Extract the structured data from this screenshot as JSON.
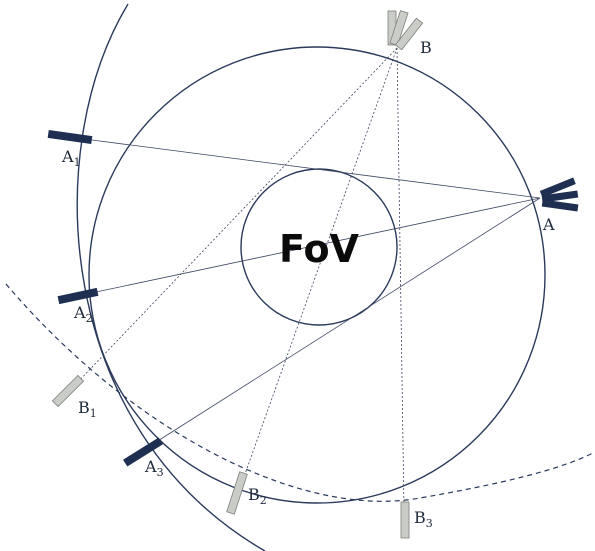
{
  "diagram": {
    "fov_label": "FoV",
    "labels": {
      "A": {
        "main": "A",
        "sub": ""
      },
      "B": {
        "main": "B",
        "sub": ""
      },
      "A1": {
        "main": "A",
        "sub": "1"
      },
      "A2": {
        "main": "A",
        "sub": "2"
      },
      "A3": {
        "main": "A",
        "sub": "3"
      },
      "B1": {
        "main": "B",
        "sub": "1"
      },
      "B2": {
        "main": "B",
        "sub": "2"
      },
      "B3": {
        "main": "B",
        "sub": "3"
      }
    },
    "colors": {
      "line": "#2b3a5c",
      "detector_dark": "#1f2f52",
      "detector_light": "#c9ccc7",
      "detector_light_edge": "#7d807b"
    }
  }
}
